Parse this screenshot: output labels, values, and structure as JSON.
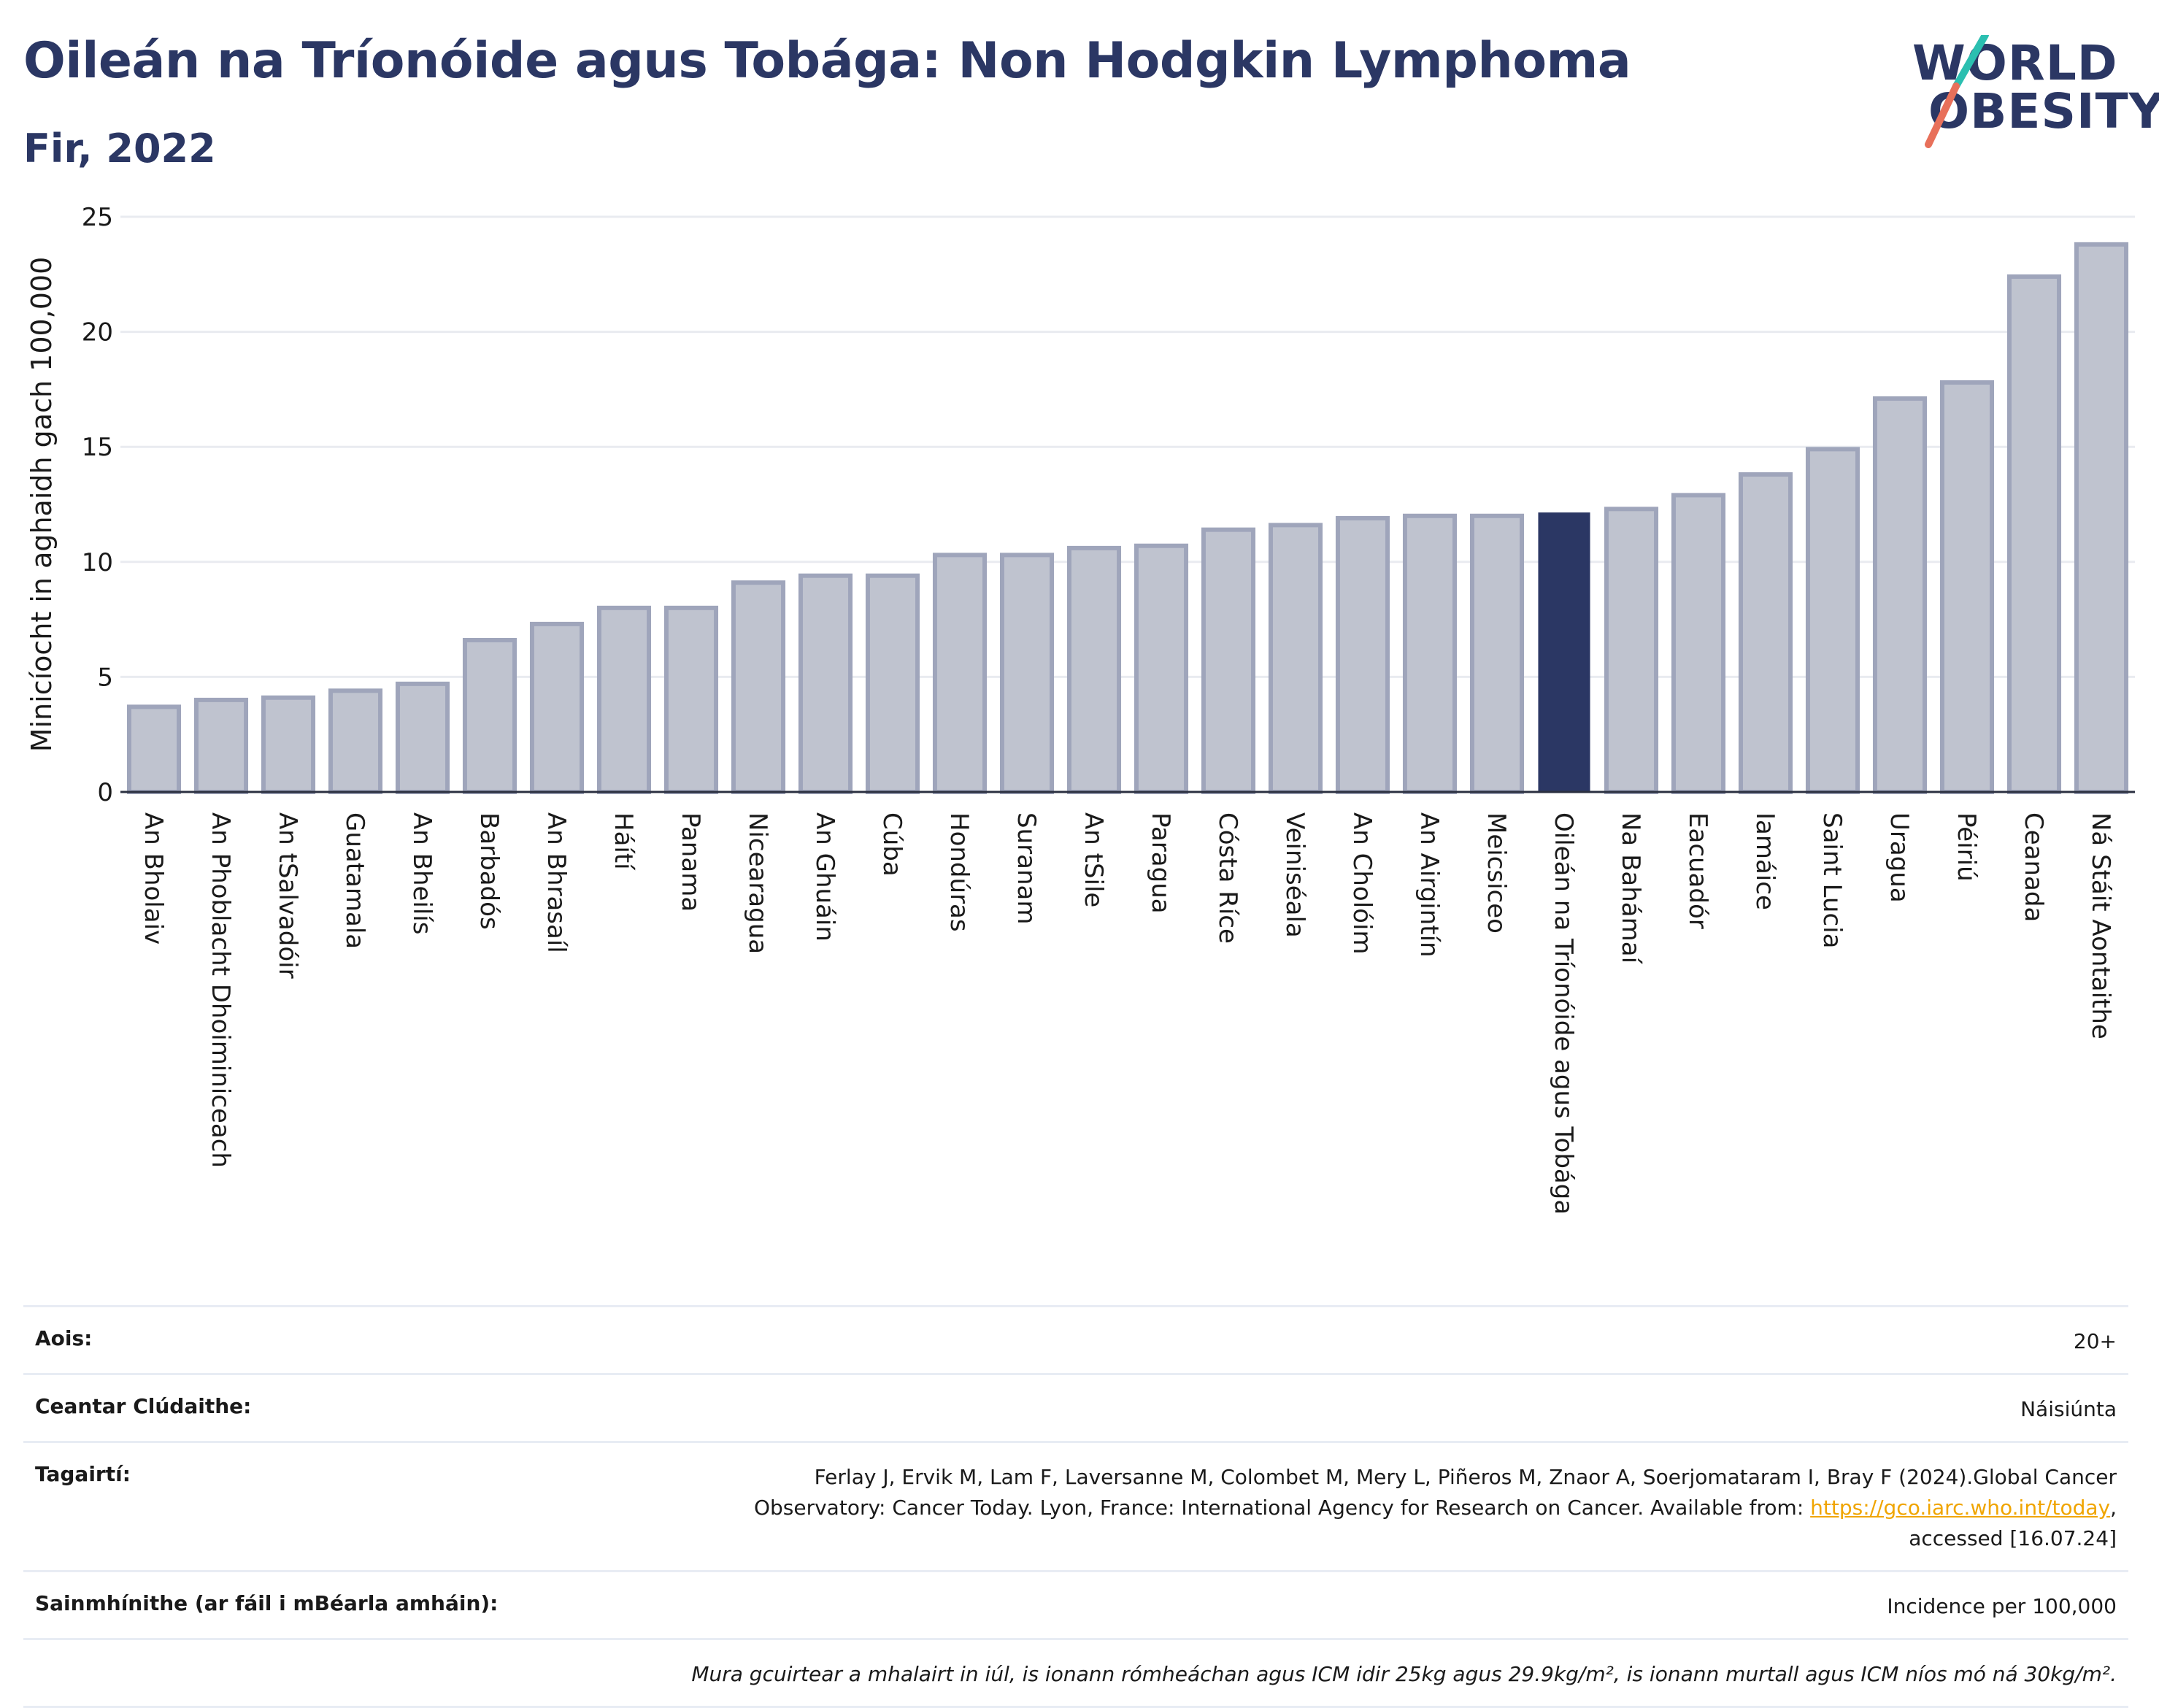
{
  "header": {
    "title": "Oileán na Tríonóide agus Tobága: Non Hodgkin Lymphoma",
    "subtitle": "Fir, 2022",
    "logo_line1": "WORLD",
    "logo_line2": "OBESITY"
  },
  "colors": {
    "bar_default": "#bfc3cf",
    "bar_default_edge": "#9fa5bb",
    "bar_highlight": "#2b3764",
    "title": "#2b3764",
    "logo_slash_teal": "#2bbfb0",
    "logo_slash_red": "#e8705a",
    "link": "#f0a500"
  },
  "chart_data": {
    "type": "bar",
    "ylabel": "Minicíocht in aghaidh gach 100,000",
    "ylim": [
      0,
      25
    ],
    "yticks": [
      0,
      5,
      10,
      15,
      20,
      25
    ],
    "grid": true,
    "highlight": "Oileán na Tríonóide agus Tobága",
    "categories": [
      "An Bholaiv",
      "An Phoblacht Dhoiminiceach",
      "An tSalvadóir",
      "Guatamala",
      "An Bheilís",
      "Barbadós",
      "An Bhrasaíl",
      "Háítí",
      "Panama",
      "Nicearagua",
      "An Ghuáin",
      "Cúba",
      "Hondúras",
      "Suranam",
      "An tSile",
      "Paragua",
      "Cósta Ríce",
      "Veiniséala",
      "An Cholóim",
      "An Airgintín",
      "Meicsiceo",
      "Oileán na Tríonóide agus Tobága",
      "Na Bahámaí",
      "Eacuadór",
      "Iamáice",
      "Saint Lucia",
      "Uragua",
      "Péiriú",
      "Ceanada",
      "Ná Stáit Aontaithe"
    ],
    "values": [
      3.7,
      4.0,
      4.1,
      4.4,
      4.7,
      6.6,
      7.3,
      8.0,
      8.0,
      9.1,
      9.4,
      9.4,
      10.3,
      10.3,
      10.6,
      10.7,
      11.4,
      11.6,
      11.9,
      12.0,
      12.0,
      12.1,
      12.3,
      12.9,
      13.8,
      14.9,
      17.1,
      17.8,
      22.4,
      23.8
    ]
  },
  "info": {
    "age_label": "Aois:",
    "age_value": "20+",
    "area_label": "Ceantar Clúdaithe:",
    "area_value": "Náisiúnta",
    "refs_label": "Tagairtí:",
    "refs_line1": "Ferlay J, Ervik M, Lam F, Laversanne M, Colombet M, Mery L, Piñeros M, Znaor A, Soerjomataram I, Bray F (2024).Global Cancer",
    "refs_line2_pre": "Observatory: Cancer Today. Lyon, France: International Agency for Research on Cancer. Available from: ",
    "refs_link": "https://gco.iarc.who.int/today",
    "refs_line2_post": ",",
    "refs_line3": "accessed [16.07.24]",
    "defs_label": "Sainmhínithe (ar fáil i mBéarla amháin):",
    "defs_value": "Incidence per 100,000",
    "note": "Mura gcuirtear a mhalairt in iúl, is ionann rómheáchan agus ICM idir 25kg agus 29.9kg/m², is ionann murtall agus ICM níos mó ná 30kg/m²."
  }
}
